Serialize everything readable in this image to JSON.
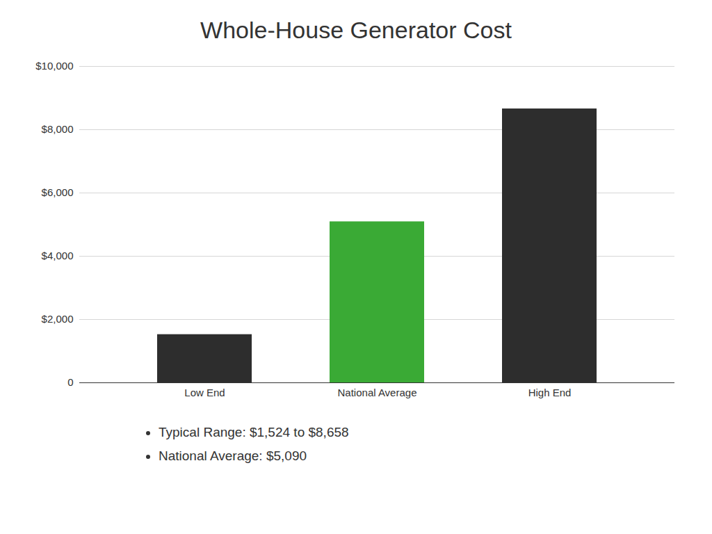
{
  "chart_data": {
    "type": "bar",
    "title": "Whole-House Generator Cost",
    "categories": [
      "Low End",
      "National Average",
      "High End"
    ],
    "values": [
      1524,
      5090,
      8658
    ],
    "colors": [
      "#2d2d2d",
      "#3aaa35",
      "#2d2d2d"
    ],
    "ylim": [
      0,
      10000
    ],
    "yticks": [
      0,
      {
        "value": 2000,
        "label": "$2,000"
      },
      {
        "value": 4000,
        "label": "$4,000"
      },
      {
        "value": 6000,
        "label": "$6,000"
      },
      {
        "value": 8000,
        "label": "$8,000"
      },
      {
        "value": 10000,
        "label": "$10,000"
      }
    ],
    "grid": true,
    "annotations": [
      "Typical Range: $1,524 to $8,658",
      "National Average: $5,090"
    ]
  }
}
